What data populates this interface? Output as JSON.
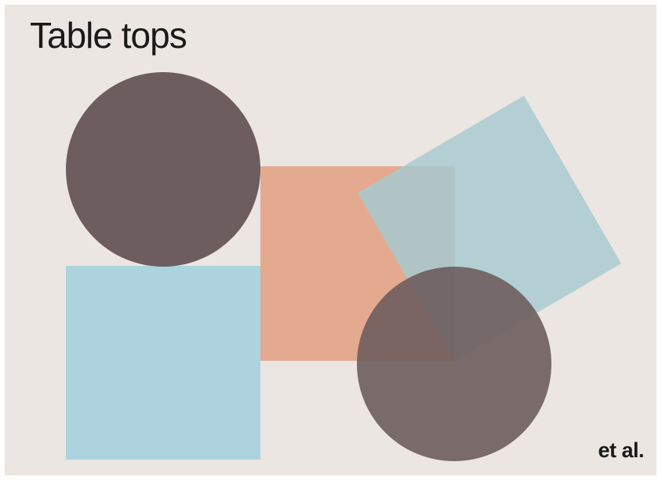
{
  "title": "Table tops",
  "brand": "et al.",
  "colors": {
    "background": "#ebe6e1",
    "dark_circle": "#6e5d5e",
    "blue_square": "#acd3de",
    "salmon_square": "#e4aa8f",
    "rotated_square": "#a6c9d1",
    "text": "#1a1a1a"
  }
}
